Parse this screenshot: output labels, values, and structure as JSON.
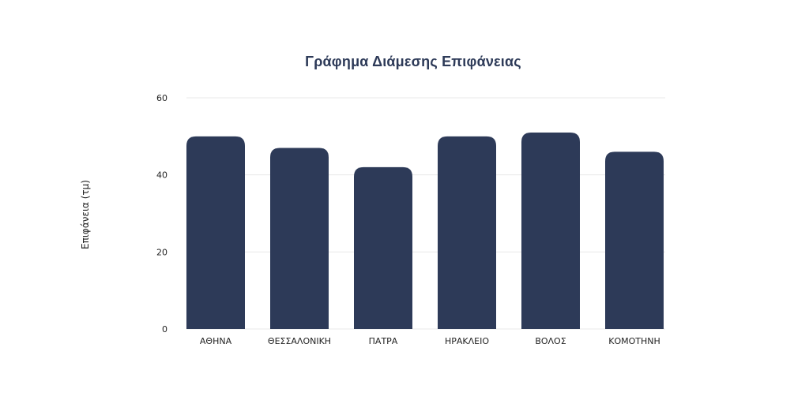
{
  "chart_data": {
    "type": "bar",
    "title": "Γράφημα Διάμεσης Επιφάνειας",
    "xlabel": "",
    "ylabel": "Επιφάνεια (τμ)",
    "categories": [
      "ΑΘΗΝΑ",
      "ΘΕΣΣΑΛΟΝΙΚΗ",
      "ΠΑΤΡΑ",
      "ΗΡΑΚΛΕΙΟ",
      "ΒΟΛΟΣ",
      "ΚΟΜΟΤΗΝΗ"
    ],
    "values": [
      50,
      47,
      42,
      50,
      51,
      46
    ],
    "ylim": [
      0,
      60
    ],
    "yticks": [
      0,
      20,
      40,
      60
    ],
    "grid": true,
    "legend": "none",
    "colors": {
      "bar": "#2d3a58",
      "grid": "#e8e8e8",
      "title": "#2d3a58"
    }
  }
}
